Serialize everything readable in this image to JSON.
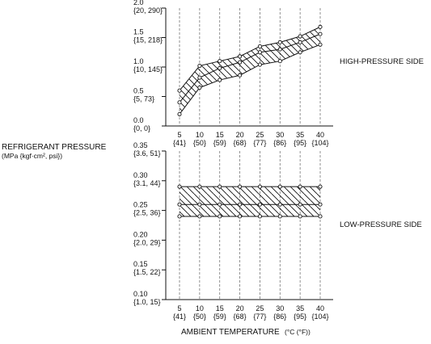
{
  "chart_data": {
    "type": "area",
    "title": "",
    "ylabel": "REFRIGERANT PRESSURE",
    "yunit": "(MPa {kgf·cm², psi})",
    "xlabel": "AMBIENT TEMPERATURE",
    "xunit": "(°C (°F))",
    "x": [
      5,
      10,
      15,
      20,
      25,
      30,
      35,
      40
    ],
    "x_tick_labels": [
      {
        "top": "5",
        "bottom": "{41}"
      },
      {
        "top": "10",
        "bottom": "{50}"
      },
      {
        "top": "15",
        "bottom": "{59}"
      },
      {
        "top": "20",
        "bottom": "{68}"
      },
      {
        "top": "25",
        "bottom": "{77}"
      },
      {
        "top": "30",
        "bottom": "{86}"
      },
      {
        "top": "35",
        "bottom": "{95}"
      },
      {
        "top": "40",
        "bottom": "{104}"
      }
    ],
    "panels": [
      {
        "name": "HIGH-PRESSURE SIDE",
        "ylim": [
          0.0,
          2.0
        ],
        "y_ticks": [
          {
            "value": 2.0,
            "top": "2.0",
            "bottom": "{20, 290}"
          },
          {
            "value": 1.5,
            "top": "1.5",
            "bottom": "{15, 218}"
          },
          {
            "value": 1.0,
            "top": "1.0",
            "bottom": "{10, 145}"
          },
          {
            "value": 0.5,
            "top": "0.5",
            "bottom": "{5, 73}"
          },
          {
            "value": 0.0,
            "top": "0.0",
            "bottom": "{0, 0}"
          }
        ],
        "upper": [
          0.6,
          1.02,
          1.1,
          1.18,
          1.35,
          1.42,
          1.52,
          1.68
        ],
        "middle": [
          0.4,
          0.82,
          0.98,
          1.08,
          1.25,
          1.3,
          1.42,
          1.56
        ],
        "lower": [
          0.2,
          0.65,
          0.78,
          0.86,
          1.04,
          1.1,
          1.25,
          1.38
        ]
      },
      {
        "name": "LOW-PRESSURE SIDE",
        "ylim": [
          0.1,
          0.35
        ],
        "y_ticks": [
          {
            "value": 0.35,
            "top": "0.35",
            "bottom": "{3.6, 51}"
          },
          {
            "value": 0.3,
            "top": "0.30",
            "bottom": "{3.1, 44}"
          },
          {
            "value": 0.25,
            "top": "0.25",
            "bottom": "{2.5, 36}"
          },
          {
            "value": 0.2,
            "top": "0.20",
            "bottom": "{2.0, 29}"
          },
          {
            "value": 0.15,
            "top": "0.15",
            "bottom": "{1.5, 22}"
          },
          {
            "value": 0.1,
            "top": "0.10",
            "bottom": "{1.0, 15}"
          }
        ],
        "upper": [
          0.29,
          0.29,
          0.29,
          0.29,
          0.29,
          0.29,
          0.29,
          0.29
        ],
        "middle": [
          0.26,
          0.26,
          0.26,
          0.26,
          0.26,
          0.26,
          0.26,
          0.26
        ],
        "lower": [
          0.24,
          0.24,
          0.24,
          0.24,
          0.24,
          0.24,
          0.24,
          0.24
        ]
      }
    ],
    "grid": "vertical dashed",
    "colors": {
      "line": "#111111",
      "hatch": "#111111",
      "grid": "#777777",
      "marker_fill": "#ffffff"
    }
  }
}
